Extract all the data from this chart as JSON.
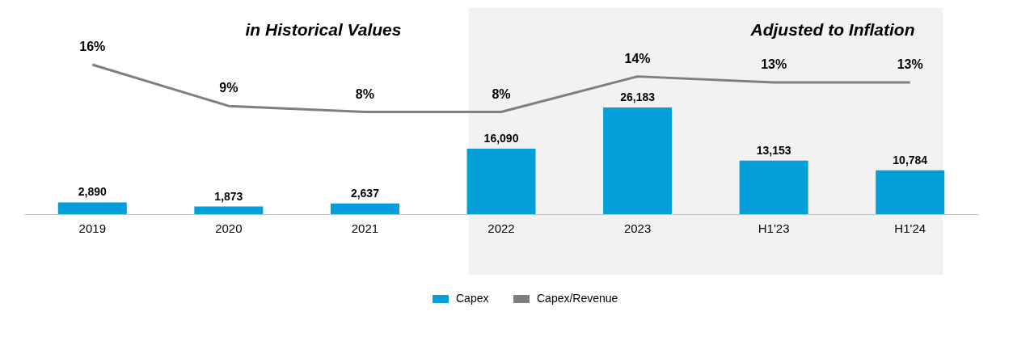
{
  "chart_data": {
    "type": "bar",
    "categories": [
      "2019",
      "2020",
      "2021",
      "2022",
      "2023",
      "H1'23",
      "H1'24"
    ],
    "series": [
      {
        "name": "Capex",
        "color": "#049fd9",
        "values": [
          2890,
          1873,
          2637,
          16090,
          26183,
          13153,
          10784
        ],
        "value_labels": [
          "2,890",
          "1,873",
          "2,637",
          "16,090",
          "26,183",
          "13,153",
          "10,784"
        ]
      },
      {
        "name": "Capex/Revenue",
        "type": "line",
        "axis": "y2",
        "color": "#7f7f7f",
        "values": [
          16,
          9,
          8,
          8,
          14,
          13,
          13
        ],
        "value_labels": [
          "16%",
          "9%",
          "8%",
          "8%",
          "14%",
          "13%",
          "13%"
        ]
      }
    ],
    "bands": [
      {
        "axis": "x",
        "from": "2022",
        "to": "H1'24",
        "label": "Adjusted to Inflation",
        "color": "#f2f2f2"
      }
    ],
    "annotations": [
      "in Historical Values"
    ],
    "legend": "bottom",
    "grid": false,
    "marker": "none"
  }
}
